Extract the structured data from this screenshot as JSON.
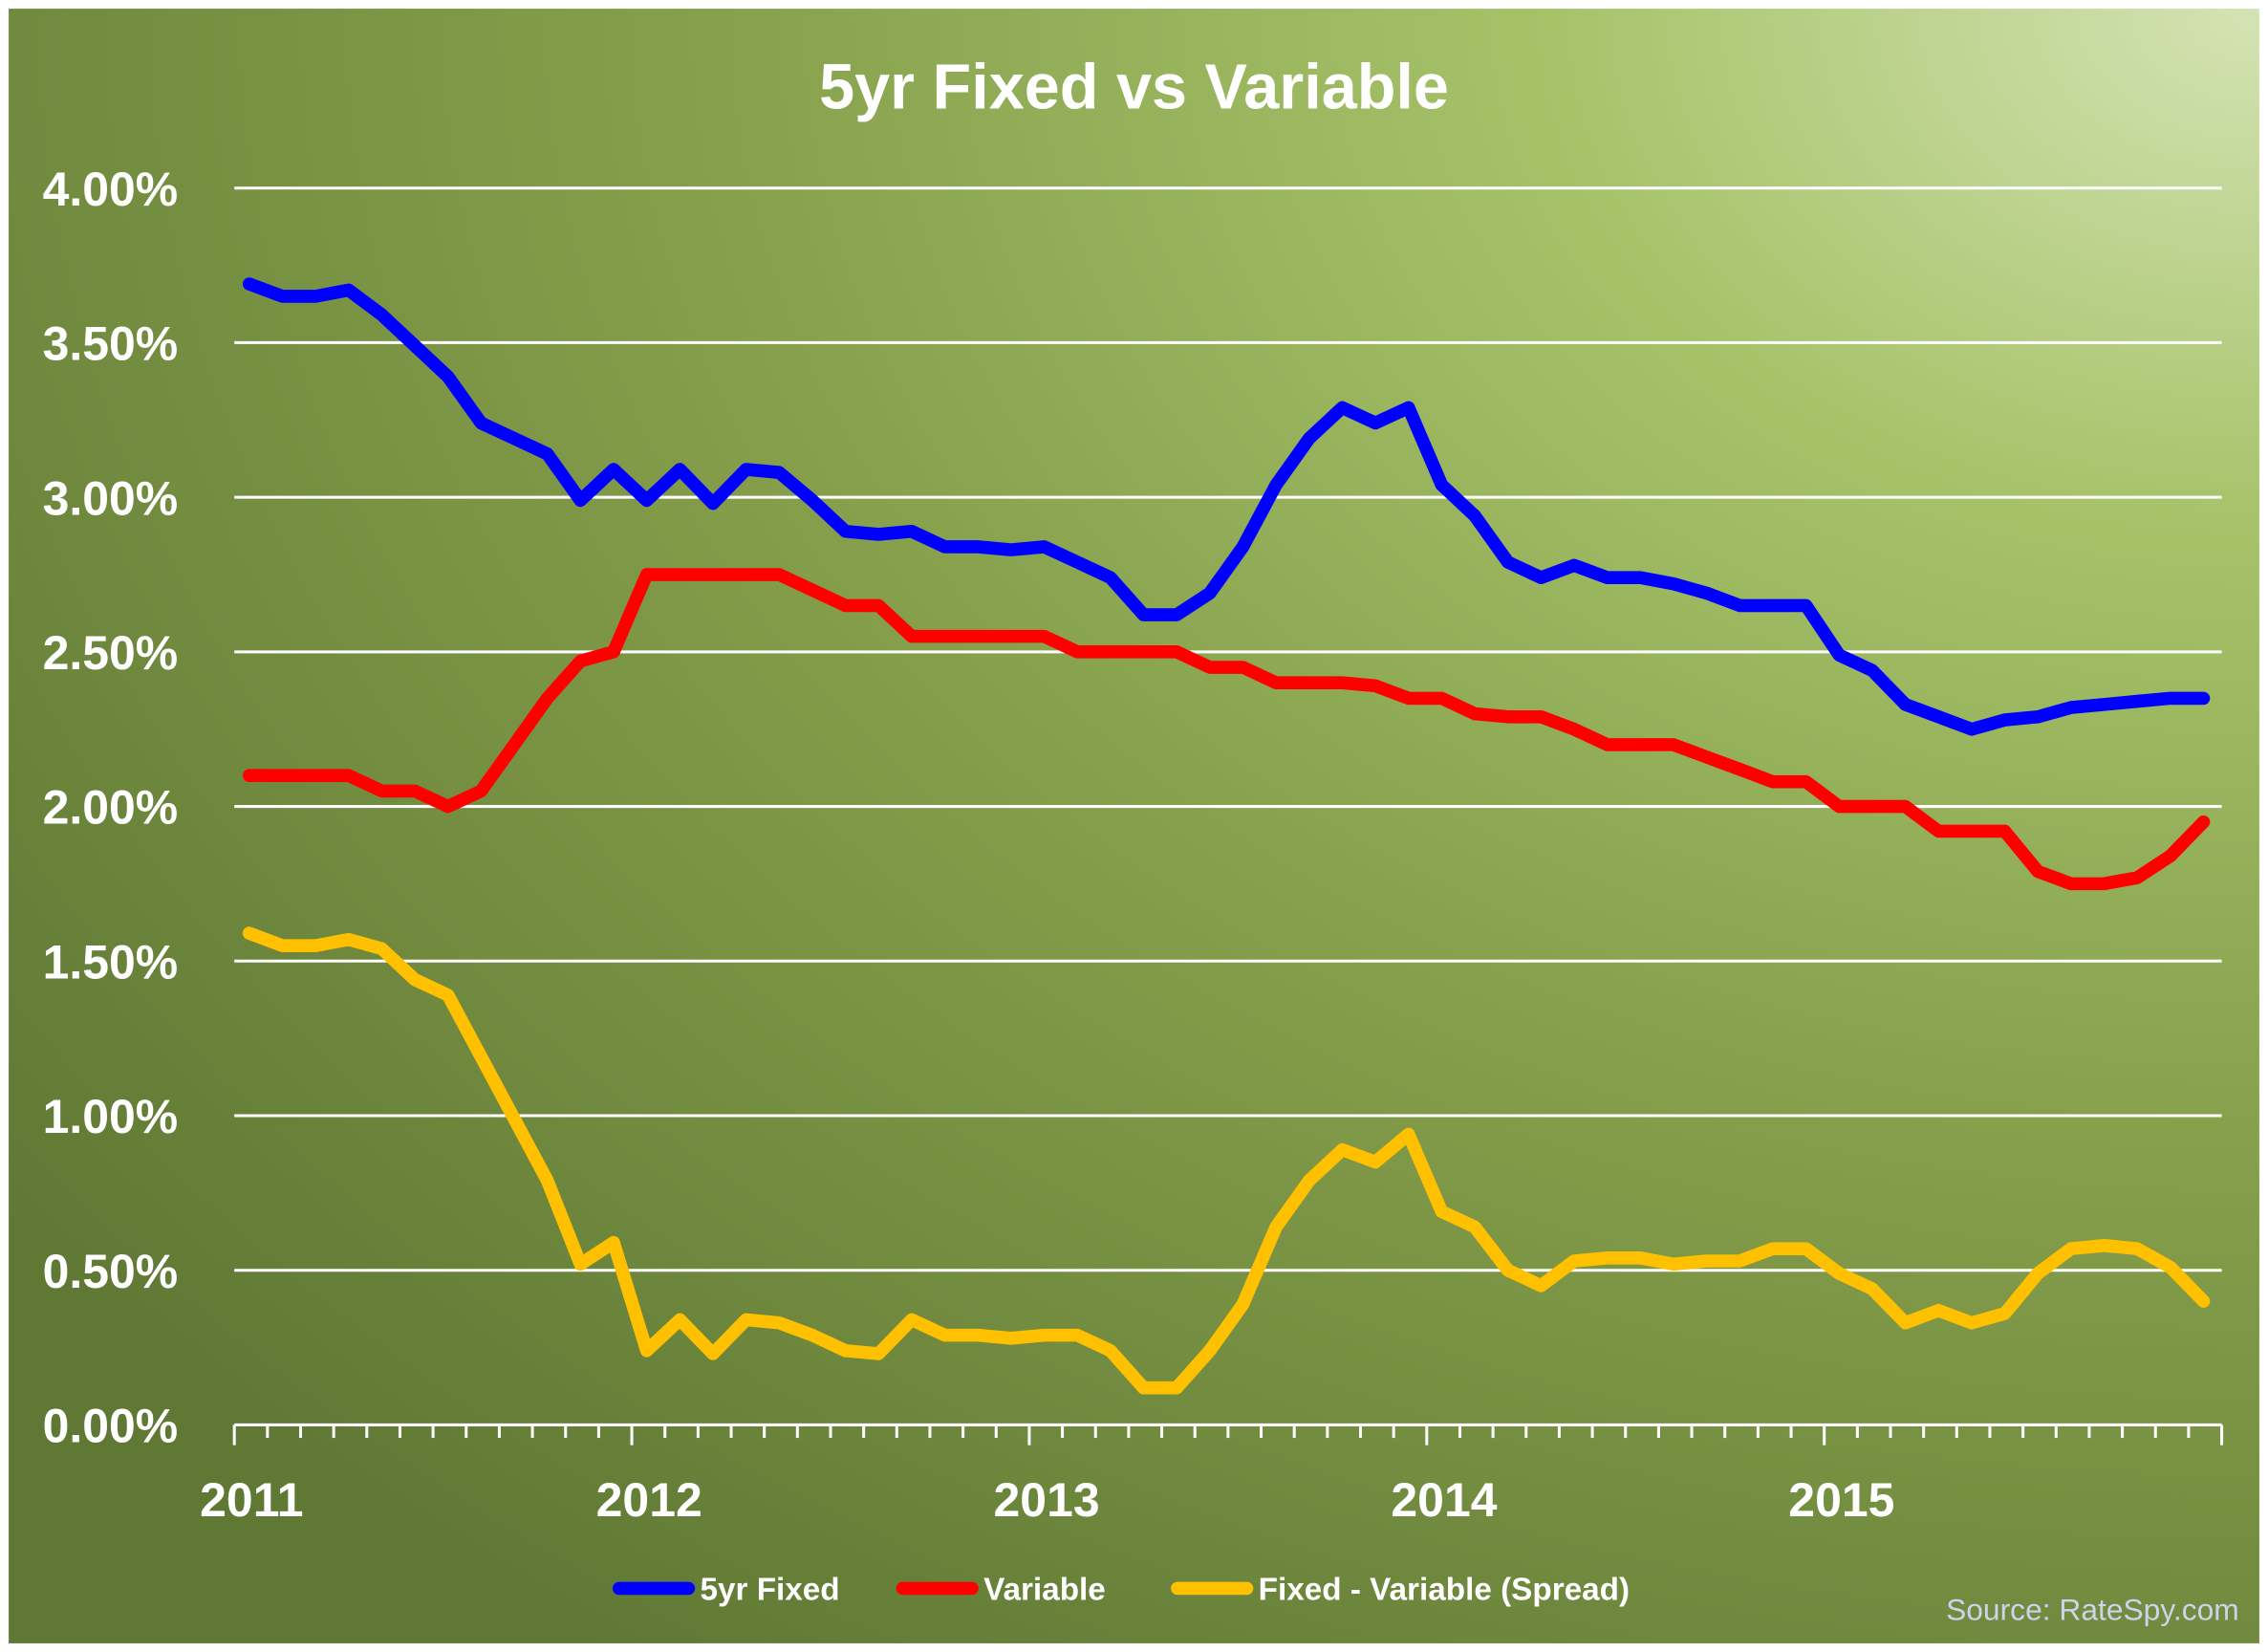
{
  "chart_data": {
    "type": "line",
    "title": "5yr Fixed vs Variable",
    "xlabel": "",
    "ylabel": "",
    "x_ticks": [
      "2011",
      "2012",
      "2013",
      "2014",
      "2015"
    ],
    "x_range": [
      "2011-01",
      "2015-12"
    ],
    "x_frequency": "monthly",
    "ylim": [
      0,
      4
    ],
    "y_ticks": [
      "0.00%",
      "0.50%",
      "1.00%",
      "1.50%",
      "2.00%",
      "2.50%",
      "3.00%",
      "3.50%",
      "4.00%"
    ],
    "grid": "horizontal",
    "legend_position": "bottom",
    "source": "Source: RateSpy.com",
    "series": [
      {
        "name": "5yr Fixed",
        "color": "#0000ff",
        "values": [
          3.69,
          3.65,
          3.65,
          3.67,
          3.59,
          3.49,
          3.39,
          3.24,
          3.19,
          3.14,
          2.99,
          3.09,
          2.99,
          3.09,
          2.98,
          3.09,
          3.08,
          2.99,
          2.89,
          2.88,
          2.89,
          2.84,
          2.84,
          2.83,
          2.84,
          2.79,
          2.74,
          2.62,
          2.62,
          2.69,
          2.84,
          3.04,
          3.19,
          3.29,
          3.24,
          3.29,
          3.04,
          2.94,
          2.79,
          2.74,
          2.78,
          2.74,
          2.74,
          2.72,
          2.69,
          2.65,
          2.65,
          2.65,
          2.49,
          2.44,
          2.33,
          2.29,
          2.25,
          2.28,
          2.29,
          2.32,
          2.33,
          2.34,
          2.35,
          2.35
        ]
      },
      {
        "name": "Variable",
        "color": "#ff0000",
        "values": [
          2.1,
          2.1,
          2.1,
          2.1,
          2.05,
          2.05,
          2.0,
          2.05,
          2.2,
          2.35,
          2.47,
          2.5,
          2.75,
          2.75,
          2.75,
          2.75,
          2.75,
          2.7,
          2.65,
          2.65,
          2.55,
          2.55,
          2.55,
          2.55,
          2.55,
          2.5,
          2.5,
          2.5,
          2.5,
          2.45,
          2.45,
          2.4,
          2.4,
          2.4,
          2.39,
          2.35,
          2.35,
          2.3,
          2.29,
          2.29,
          2.25,
          2.2,
          2.2,
          2.2,
          2.16,
          2.12,
          2.08,
          2.08,
          2.0,
          2.0,
          2.0,
          1.92,
          1.92,
          1.92,
          1.79,
          1.75,
          1.75,
          1.77,
          1.84,
          1.95
        ]
      },
      {
        "name": "Fixed - Variable (Spread)",
        "color": "#ffc000",
        "values": [
          1.59,
          1.55,
          1.55,
          1.57,
          1.54,
          1.44,
          1.39,
          1.19,
          0.99,
          0.79,
          0.52,
          0.59,
          0.24,
          0.34,
          0.23,
          0.34,
          0.33,
          0.29,
          0.24,
          0.23,
          0.34,
          0.29,
          0.29,
          0.28,
          0.29,
          0.29,
          0.24,
          0.12,
          0.12,
          0.24,
          0.39,
          0.64,
          0.79,
          0.89,
          0.85,
          0.94,
          0.69,
          0.64,
          0.5,
          0.45,
          0.53,
          0.54,
          0.54,
          0.52,
          0.53,
          0.53,
          0.57,
          0.57,
          0.49,
          0.44,
          0.33,
          0.37,
          0.33,
          0.36,
          0.49,
          0.57,
          0.58,
          0.57,
          0.51,
          0.4
        ]
      }
    ]
  }
}
